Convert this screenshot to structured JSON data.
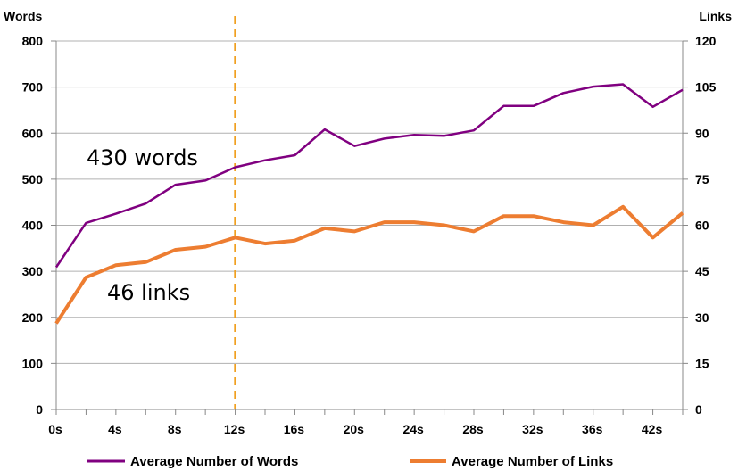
{
  "chart_data": {
    "type": "line",
    "x": [
      0,
      2,
      4,
      6,
      8,
      10,
      12,
      14,
      16,
      18,
      20,
      22,
      24,
      26,
      28,
      30,
      32,
      34,
      36,
      38,
      40,
      42
    ],
    "x_tick_labels": [
      "0s",
      "4s",
      "8s",
      "12s",
      "16s",
      "20s",
      "24s",
      "28s",
      "32s",
      "36s",
      "42s"
    ],
    "xlim": [
      0,
      42
    ],
    "series": [
      {
        "name": "Average Number of Words",
        "axis": "left",
        "color": "#800080",
        "values": [
          309,
          405,
          425,
          447,
          488,
          497,
          526,
          541,
          552,
          608,
          572,
          588,
          596,
          594,
          606,
          659,
          659,
          687,
          701,
          706,
          657,
          694
        ]
      },
      {
        "name": "Average Number of Links",
        "axis": "right",
        "color": "#ED7D31",
        "values": [
          28,
          43,
          47,
          48,
          52,
          53,
          56,
          54,
          55,
          59,
          58,
          61,
          61,
          60,
          58,
          63,
          63,
          61,
          60,
          66,
          56,
          64
        ]
      }
    ],
    "y_left": {
      "label": "Words",
      "lim": [
        0,
        800
      ],
      "ticks": [
        0,
        100,
        200,
        300,
        400,
        500,
        600,
        700,
        800
      ]
    },
    "y_right": {
      "label": "Links",
      "lim": [
        0,
        120
      ],
      "ticks": [
        0,
        15,
        30,
        45,
        60,
        75,
        90,
        105,
        120
      ]
    },
    "reference_line": {
      "x": 12,
      "color": "#F0A020",
      "style": "dashed"
    },
    "annotations": [
      {
        "text": "430 words"
      },
      {
        "text": "46 links"
      }
    ],
    "legend_position": "bottom",
    "grid": true
  }
}
